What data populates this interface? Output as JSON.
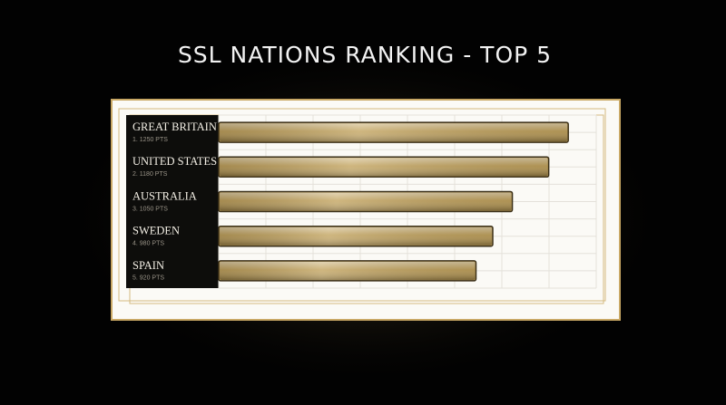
{
  "chart_data": {
    "type": "bar",
    "orientation": "horizontal",
    "title": "SSL NATIONS RANKING - TOP 5",
    "categories": [
      "GREAT BRITAIN",
      "UNITED STATES",
      "AUSTRALIA",
      "SWEDEN",
      "SPAIN"
    ],
    "values": [
      1250,
      1180,
      1050,
      980,
      920
    ],
    "value_labels": [
      "1. 1250 PTS",
      "2. 1180 PTS",
      "3. 1050 PTS",
      "4. 980 PTS",
      "5. 920 PTS"
    ],
    "color": "#bf9e55",
    "xlim": [
      0,
      1350
    ],
    "grid": true
  }
}
